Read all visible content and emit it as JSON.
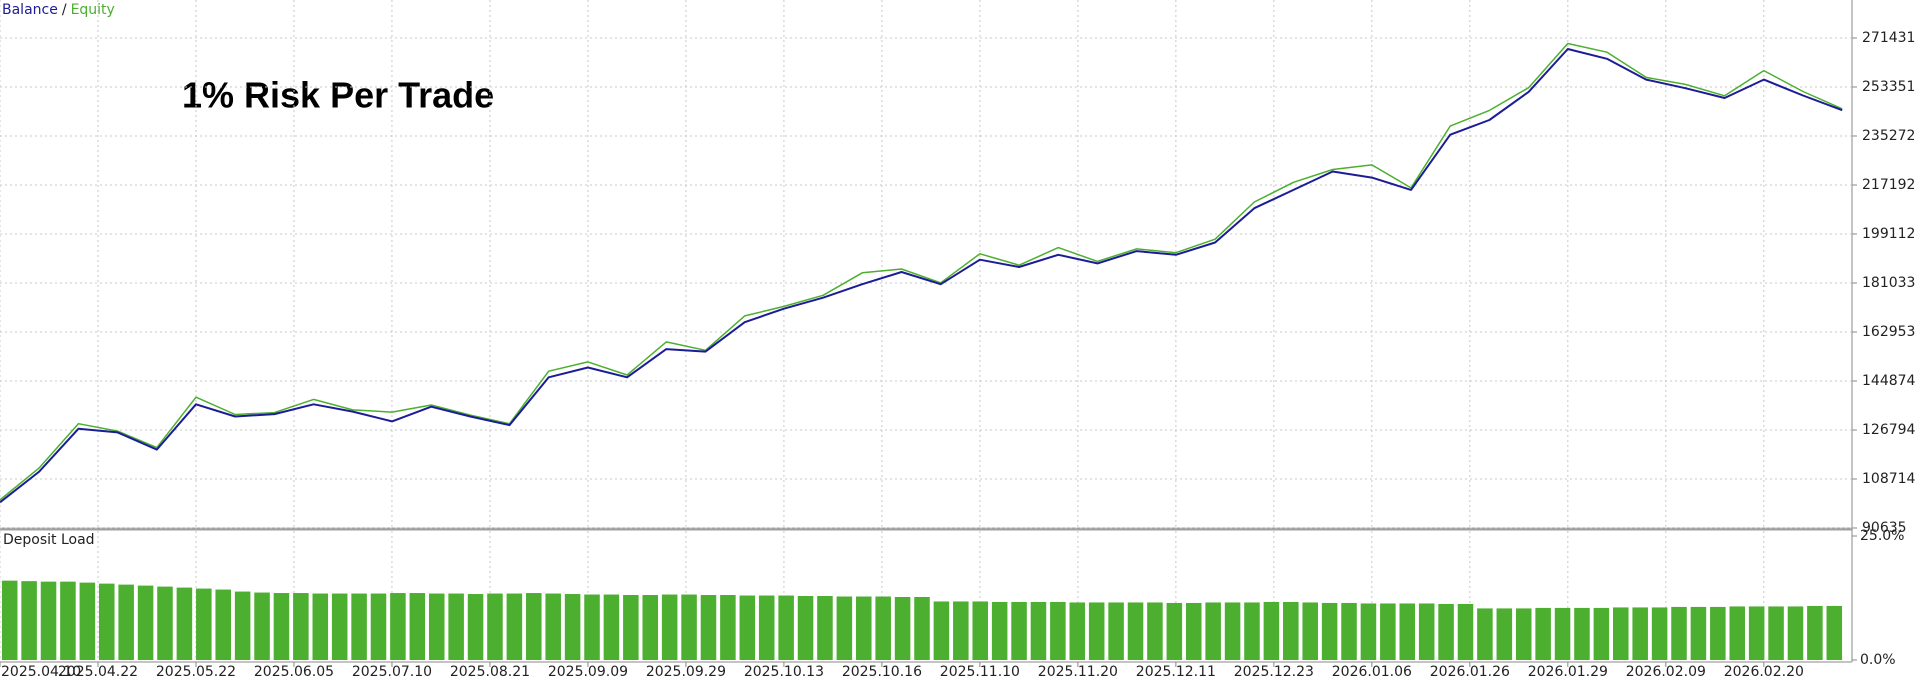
{
  "chart_data": [
    {
      "type": "line",
      "title": "1% Risk Per Trade",
      "legend_separator": "/",
      "x": [
        0,
        4,
        8,
        12,
        16,
        20,
        24,
        28,
        32,
        36,
        40,
        44,
        48,
        52,
        56,
        60,
        64,
        68,
        72,
        76,
        80,
        84,
        88,
        92,
        96,
        100,
        104,
        108,
        112,
        116,
        120,
        124,
        128,
        132,
        136,
        140,
        144,
        148,
        152,
        156,
        160,
        164,
        168,
        172,
        176,
        180,
        184,
        188
      ],
      "series": [
        {
          "name": "Balance",
          "color": "#1c1c96",
          "values": [
            100127,
            111427,
            127247,
            125891,
            119560,
            136287,
            131767,
            132671,
            136287,
            133575,
            129959,
            135383,
            131767,
            128599,
            146231,
            149847,
            146231,
            156627,
            155723,
            166571,
            171543,
            175611,
            180583,
            185103,
            180583,
            189627,
            186915,
            191435,
            188271,
            192791,
            191435,
            195955,
            208611,
            215391,
            222171,
            219911,
            215391,
            235731,
            241155,
            251551,
            267367,
            263755,
            256071,
            252907,
            249291,
            256071,
            250195,
            244771
          ]
        },
        {
          "name": "Equity",
          "color": "#4caf2f",
          "values": [
            101000,
            112800,
            129100,
            126400,
            120300,
            138900,
            132500,
            133200,
            138100,
            134200,
            133400,
            136000,
            132300,
            129100,
            148500,
            151900,
            147100,
            159300,
            156200,
            168900,
            172400,
            176500,
            184800,
            186200,
            181100,
            191800,
            187600,
            194100,
            189000,
            193600,
            192200,
            197200,
            210900,
            218200,
            222900,
            224600,
            216100,
            238900,
            244700,
            253100,
            269400,
            266200,
            256900,
            254300,
            250100,
            259400,
            251700,
            245300
          ]
        }
      ],
      "xlim": [
        0,
        189
      ],
      "xticks": [
        {
          "value": 0,
          "label": "2025.04.10"
        },
        {
          "value": 10,
          "label": "2025.04.22"
        },
        {
          "value": 20,
          "label": "2025.05.22"
        },
        {
          "value": 30,
          "label": "2025.06.05"
        },
        {
          "value": 40,
          "label": "2025.07.10"
        },
        {
          "value": 50,
          "label": "2025.08.21"
        },
        {
          "value": 60,
          "label": "2025.09.09"
        },
        {
          "value": 70,
          "label": "2025.09.29"
        },
        {
          "value": 80,
          "label": "2025.10.13"
        },
        {
          "value": 90,
          "label": "2025.10.16"
        },
        {
          "value": 100,
          "label": "2025.11.10"
        },
        {
          "value": 110,
          "label": "2025.11.20"
        },
        {
          "value": 120,
          "label": "2025.12.11"
        },
        {
          "value": 130,
          "label": "2025.12.23"
        },
        {
          "value": 140,
          "label": "2026.01.06"
        },
        {
          "value": 150,
          "label": "2026.01.26"
        },
        {
          "value": 160,
          "label": "2026.01.29"
        },
        {
          "value": 170,
          "label": "2026.02.09"
        },
        {
          "value": 180,
          "label": "2026.02.20"
        }
      ],
      "ylim": [
        90635,
        285443
      ],
      "yticks": [
        90635,
        108714,
        126794,
        144874,
        162953,
        181033,
        199112,
        217192,
        235272,
        253351,
        271431
      ],
      "grid": true
    },
    {
      "type": "bar",
      "title": "Deposit Load",
      "color": "#4caf2f",
      "values": [
        16,
        15.9,
        15.8,
        15.8,
        15.6,
        15.4,
        15.2,
        15,
        14.8,
        14.6,
        14.4,
        14.2,
        13.8,
        13.6,
        13.5,
        13.5,
        13.4,
        13.4,
        13.4,
        13.4,
        13.5,
        13.5,
        13.4,
        13.4,
        13.3,
        13.4,
        13.4,
        13.5,
        13.4,
        13.3,
        13.2,
        13.2,
        13.1,
        13.1,
        13.2,
        13.2,
        13.1,
        13.1,
        13,
        13,
        13,
        12.9,
        12.9,
        12.8,
        12.8,
        12.8,
        12.7,
        12.7,
        11.8,
        11.8,
        11.8,
        11.7,
        11.7,
        11.7,
        11.7,
        11.6,
        11.6,
        11.6,
        11.6,
        11.6,
        11.5,
        11.5,
        11.6,
        11.6,
        11.6,
        11.7,
        11.7,
        11.6,
        11.5,
        11.5,
        11.4,
        11.4,
        11.4,
        11.4,
        11.3,
        11.3,
        10.4,
        10.4,
        10.4,
        10.5,
        10.5,
        10.5,
        10.5,
        10.6,
        10.6,
        10.6,
        10.7,
        10.7,
        10.7,
        10.8,
        10.8,
        10.8,
        10.8,
        10.9,
        10.9
      ],
      "ylim": [
        0,
        25
      ],
      "yticks": [
        {
          "value": 0,
          "label": "0.0%"
        },
        {
          "value": 25,
          "label": "25.0%"
        }
      ]
    }
  ]
}
